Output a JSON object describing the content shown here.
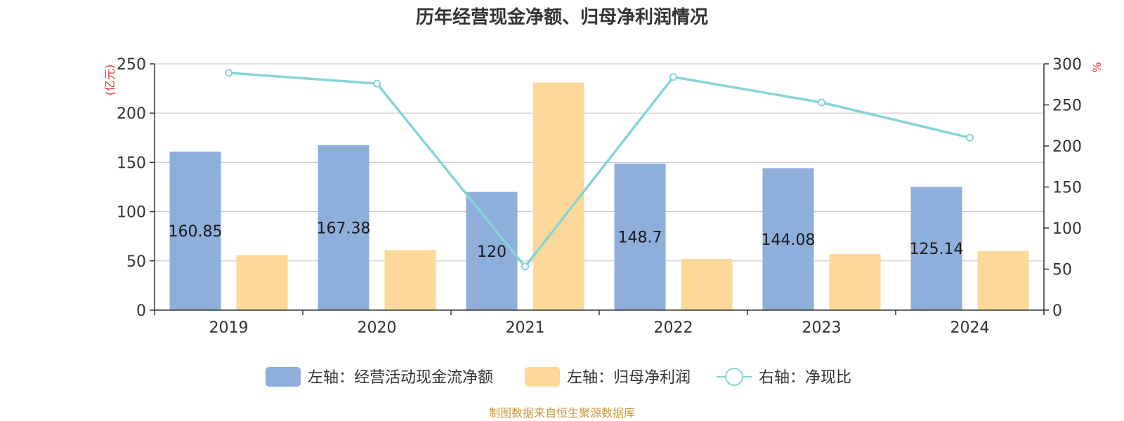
{
  "title": "历年经营现金净额、归母净利润情况",
  "source": "制图数据来自恒生聚源数据库",
  "chart_data": {
    "type": "bar",
    "categories": [
      "2019",
      "2020",
      "2021",
      "2022",
      "2023",
      "2024"
    ],
    "left_axis": {
      "unit": "(亿元)",
      "ylim": [
        0,
        250
      ],
      "ticks": [
        "0",
        "50",
        "100",
        "150",
        "200",
        "250"
      ]
    },
    "right_axis": {
      "unit": "%",
      "ylim": [
        0,
        300
      ],
      "ticks": [
        "0",
        "50",
        "100",
        "150",
        "200",
        "250",
        "300"
      ]
    },
    "series": [
      {
        "name": "左轴：经营活动现金流净额",
        "type": "bar",
        "axis": "left",
        "color": "#8eaedb",
        "values": [
          160.85,
          167.38,
          120,
          148.7,
          144.08,
          125.14
        ],
        "labels": [
          "160.85",
          "167.38",
          "120",
          "148.7",
          "144.08",
          "125.14"
        ]
      },
      {
        "name": "左轴：归母净利润",
        "type": "bar",
        "axis": "left",
        "color": "#fed899",
        "values": [
          56,
          61,
          231,
          52,
          57,
          60
        ]
      },
      {
        "name": "右轴：净现比",
        "type": "line",
        "axis": "right",
        "color": "#86d4d8",
        "values": [
          289,
          276,
          53,
          284,
          253,
          210
        ]
      }
    ],
    "grid": true,
    "legend_position": "bottom"
  }
}
